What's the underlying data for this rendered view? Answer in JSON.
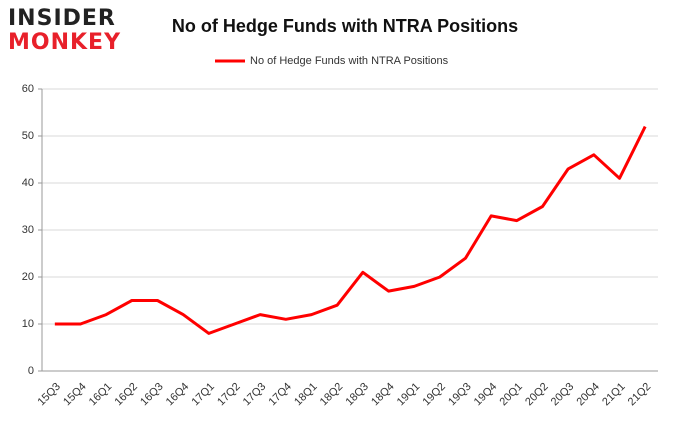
{
  "logo": [
    "INSIDER",
    "MONKEY"
  ],
  "chart_data": {
    "type": "line",
    "title": "No of Hedge Funds with NTRA Positions",
    "categories": [
      "15Q3",
      "15Q4",
      "16Q1",
      "16Q2",
      "16Q3",
      "16Q4",
      "17Q1",
      "17Q2",
      "17Q3",
      "17Q4",
      "18Q1",
      "18Q2",
      "18Q3",
      "18Q4",
      "19Q1",
      "19Q2",
      "19Q3",
      "19Q4",
      "20Q1",
      "20Q2",
      "20Q3",
      "20Q4",
      "21Q1",
      "21Q2"
    ],
    "series": [
      {
        "name": "No of Hedge Funds with NTRA Positions",
        "color": "#ff0000",
        "values": [
          10,
          10,
          12,
          15,
          15,
          12,
          8,
          10,
          12,
          11,
          12,
          14,
          21,
          17,
          18,
          20,
          24,
          33,
          32,
          35,
          43,
          46,
          41,
          52
        ]
      }
    ],
    "ylim": [
      0,
      60
    ],
    "yticks": [
      0,
      10,
      20,
      30,
      40,
      50,
      60
    ],
    "grid": true,
    "legend": "top"
  }
}
